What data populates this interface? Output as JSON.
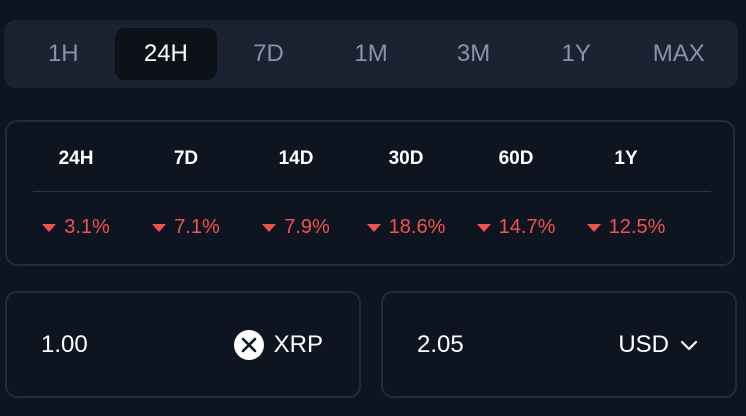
{
  "timeframes": {
    "active_index": 1,
    "items": [
      "1H",
      "24H",
      "7D",
      "1M",
      "3M",
      "1Y",
      "MAX"
    ]
  },
  "stats": {
    "headers": [
      "24H",
      "7D",
      "14D",
      "30D",
      "60D",
      "1Y"
    ],
    "changes": [
      "3.1%",
      "7.1%",
      "7.9%",
      "18.6%",
      "14.7%",
      "12.5%"
    ],
    "change_direction": "down",
    "change_color": "#f0524f"
  },
  "converter": {
    "from": {
      "amount": "1.00",
      "currency": "XRP",
      "icon": "xrp-logo-icon"
    },
    "to": {
      "amount": "2.05",
      "currency": "USD",
      "icon": "chevron-down-icon"
    }
  }
}
